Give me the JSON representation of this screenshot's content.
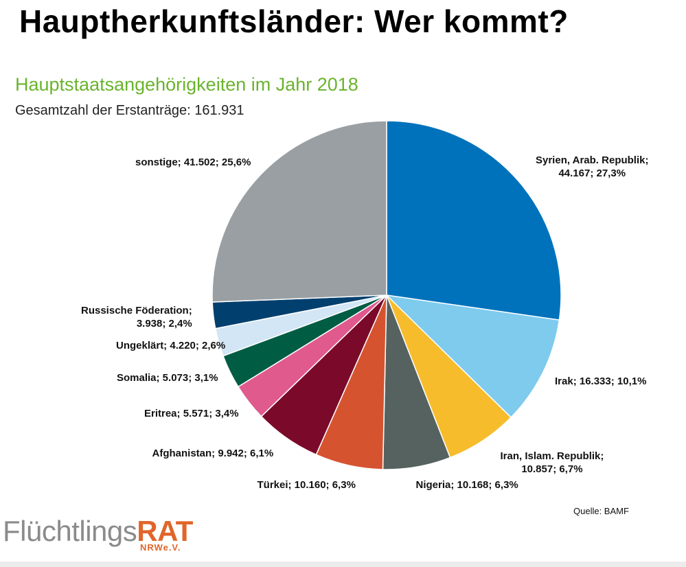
{
  "slide": {
    "title": "Hauptherkunftsländer: Wer kommt?",
    "source": "Quelle: BAMF"
  },
  "logo": {
    "part1": "Flüchtlings",
    "part2": "RAT",
    "sub": "NRWe.V."
  },
  "colors": {
    "chart_title": "#6ab42d",
    "logo_accent": "#e0652a",
    "logo_gray": "#8b8b8b"
  },
  "chart_data": {
    "type": "pie",
    "title": "Hauptstaatsangehörigkeiten im Jahr 2018",
    "subtitle": "Gesamtzahl der Erstanträge: 161.931",
    "total": 161931,
    "start_angle_deg": 0,
    "direction": "clockwise",
    "slices": [
      {
        "name": "Syrien, Arab. Republik",
        "value": 44167,
        "percent": 27.3,
        "color": "#0072bb",
        "label_lines": [
          "Syrien, Arab. Republik;",
          "44.167; 27,3%"
        ]
      },
      {
        "name": "Irak",
        "value": 16333,
        "percent": 10.1,
        "color": "#7ecbee",
        "label_lines": [
          "Irak; 16.333;  10,1%"
        ]
      },
      {
        "name": "Iran, Islam. Republik",
        "value": 10857,
        "percent": 6.7,
        "color": "#f7bc2c",
        "label_lines": [
          "Iran, Islam. Republik;",
          "10.857; 6,7%"
        ]
      },
      {
        "name": "Nigeria",
        "value": 10168,
        "percent": 6.3,
        "color": "#56625f",
        "label_lines": [
          "Nigeria; 10.168; 6,3%"
        ]
      },
      {
        "name": "Türkei",
        "value": 10160,
        "percent": 6.3,
        "color": "#d65330",
        "label_lines": [
          "Türkei; 10.160;  6,3%"
        ]
      },
      {
        "name": "Afghanistan",
        "value": 9942,
        "percent": 6.1,
        "color": "#7b0a2a",
        "label_lines": [
          "Afghanistan; 9.942; 6,1%"
        ]
      },
      {
        "name": "Eritrea",
        "value": 5571,
        "percent": 3.4,
        "color": "#e05a8e",
        "label_lines": [
          "Eritrea; 5.571;  3,4%"
        ]
      },
      {
        "name": "Somalia",
        "value": 5073,
        "percent": 3.1,
        "color": "#005c43",
        "label_lines": [
          "Somalia; 5.073; 3,1%"
        ]
      },
      {
        "name": "Ungeklärt",
        "value": 4220,
        "percent": 2.6,
        "color": "#d2e6f5",
        "label_lines": [
          "Ungeklärt; 4.220; 2,6%"
        ]
      },
      {
        "name": "Russische Föderation",
        "value": 3938,
        "percent": 2.4,
        "color": "#003f6e",
        "label_lines": [
          "Russische Föderation;",
          "3.938; 2,4%"
        ]
      },
      {
        "name": "sonstige",
        "value": 41502,
        "percent": 25.6,
        "color": "#999fa3",
        "label_lines": [
          "sonstige; 41.502;  25,6%"
        ]
      }
    ]
  }
}
